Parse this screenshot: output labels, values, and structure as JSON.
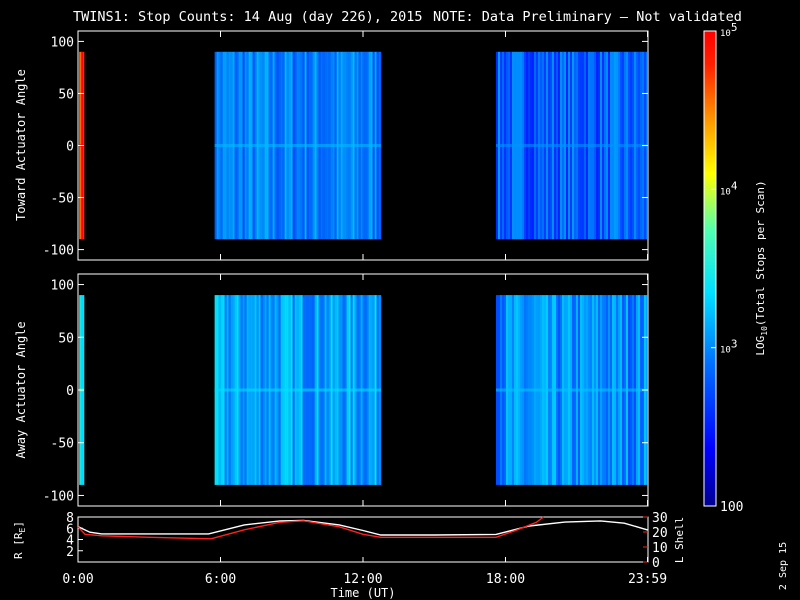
{
  "chart_data": {
    "type": "heatmap",
    "title": "TWINS1: Stop Counts: 14 Aug (day 226), 2015",
    "note": "NOTE: Data Preliminary – Not validated",
    "note_color": "#ff2020",
    "date_stamp": "2 Sep 15",
    "xlabel": "Time (UT)",
    "xlim_hours": [
      0,
      24
    ],
    "xticks": [
      {
        "hour": 0,
        "label": "0:00"
      },
      {
        "hour": 6,
        "label": "6:00"
      },
      {
        "hour": 12,
        "label": "12:00"
      },
      {
        "hour": 18,
        "label": "18:00"
      },
      {
        "hour": 23.98,
        "label": "23:59"
      }
    ],
    "colorbar": {
      "label": "LOG10(Total Stops per Scan)",
      "label_prefix": "LOG",
      "label_sub": "10",
      "label_suffix": "(Total Stops per Scan)",
      "range": [
        100,
        100000
      ],
      "scale": "log",
      "ticks": [
        {
          "value": 100,
          "label": "100"
        },
        {
          "value": 1000,
          "label": "10",
          "sup": "3"
        },
        {
          "value": 10000,
          "label": "10",
          "sup": "4"
        },
        {
          "value": 100000,
          "label": "10",
          "sup": "5"
        }
      ]
    },
    "panels": [
      {
        "id": "toward",
        "ylabel": "Toward Actuator Angle",
        "ylim": [
          -110,
          110
        ],
        "yticks": [
          100,
          50,
          0,
          -50,
          -100
        ],
        "angle_range": [
          -90,
          90
        ],
        "segments": [
          {
            "start": 0.05,
            "end": 0.25,
            "log_level": 4.85
          },
          {
            "start": 5.75,
            "end": 12.75,
            "log_level": 2.95
          },
          {
            "start": 17.6,
            "end": 23.98,
            "log_level": 2.8
          }
        ]
      },
      {
        "id": "away",
        "ylabel": "Away Actuator Angle",
        "ylim": [
          -110,
          110
        ],
        "yticks": [
          100,
          50,
          0,
          -50,
          -100
        ],
        "angle_range": [
          -90,
          90
        ],
        "segments": [
          {
            "start": 0.05,
            "end": 0.25,
            "log_level": 3.5
          },
          {
            "start": 5.75,
            "end": 12.75,
            "log_level": 3.1
          },
          {
            "start": 17.6,
            "end": 23.98,
            "log_level": 3.0
          }
        ]
      }
    ],
    "orbit": {
      "ylabel_left": "R [RE]",
      "ylabel_left_main": "R [R",
      "ylabel_left_sub": "E",
      "ylabel_left_end": "]",
      "ylabel_right": "L Shell",
      "ylim_left": [
        0,
        8
      ],
      "yticks_left": [
        2,
        4,
        6,
        8
      ],
      "ylim_right": [
        0,
        30
      ],
      "yticks_right": [
        0,
        10,
        20,
        30
      ],
      "right_color": "#ff2020",
      "series": [
        {
          "name": "R",
          "axis": "left",
          "color": "#ffffff",
          "x": [
            0,
            0.5,
            1,
            3,
            5.5,
            7,
            8.5,
            9.5,
            11,
            12,
            12.75,
            15,
            17.6,
            19,
            20.5,
            22,
            23,
            23.98
          ],
          "y": [
            6.3,
            5.3,
            5.0,
            5.0,
            5.0,
            6.6,
            7.3,
            7.4,
            6.6,
            5.6,
            4.8,
            4.8,
            4.9,
            6.4,
            7.1,
            7.3,
            6.9,
            5.7
          ]
        },
        {
          "name": "L Shell",
          "axis": "right",
          "color": "#ff2020",
          "x": [
            0,
            0.3,
            1,
            3,
            5.6,
            7,
            8.5,
            9.5,
            11,
            12,
            12.75,
            15,
            17.6,
            18.5,
            19.3,
            19.6
          ],
          "y": [
            23.5,
            18.5,
            17.5,
            16.5,
            15.5,
            21.5,
            26.5,
            27.5,
            23.5,
            18.5,
            16.5,
            16.5,
            16.5,
            21.5,
            26.5,
            30
          ]
        }
      ]
    }
  }
}
